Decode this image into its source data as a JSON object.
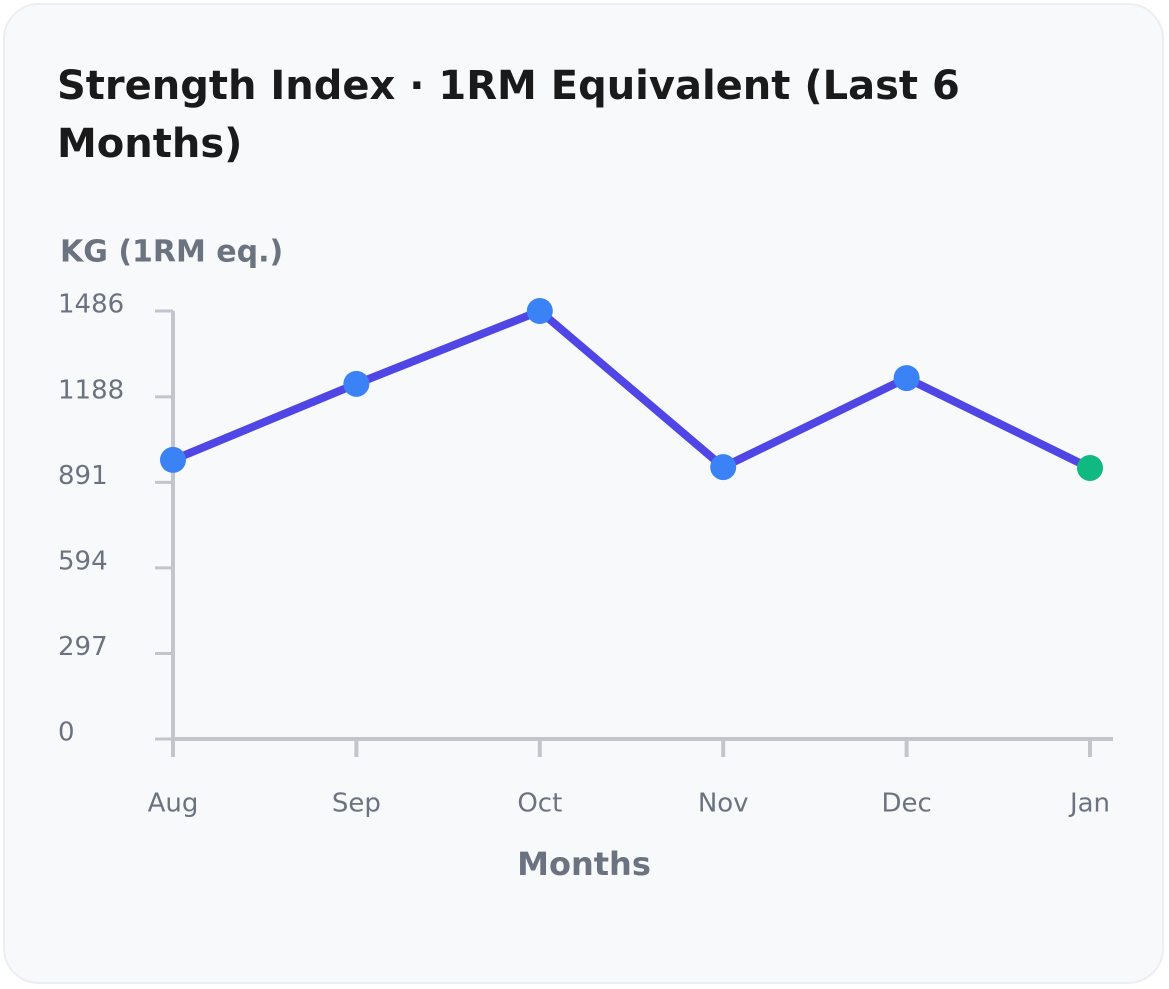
{
  "chart_data": {
    "type": "line",
    "title": "Strength Index · 1RM Equivalent (Last 6 Months)",
    "y_label": "KG (1RM eq.)",
    "x_label": "Months",
    "categories": [
      "Aug",
      "Sep",
      "Oct",
      "Nov",
      "Dec",
      "Jan"
    ],
    "series": [
      {
        "name": "Strength Index",
        "color": "#4f46e5",
        "values": [
          969,
          1233,
          1486,
          944,
          1253,
          941
        ]
      }
    ],
    "point_colors": [
      "#3b82f6",
      "#3b82f6",
      "#3b82f6",
      "#3b82f6",
      "#3b82f6",
      "#10b981"
    ],
    "ylim": [
      0,
      1486
    ],
    "yticks": [
      0,
      297,
      594,
      891,
      1188,
      1486
    ],
    "grid": false
  }
}
